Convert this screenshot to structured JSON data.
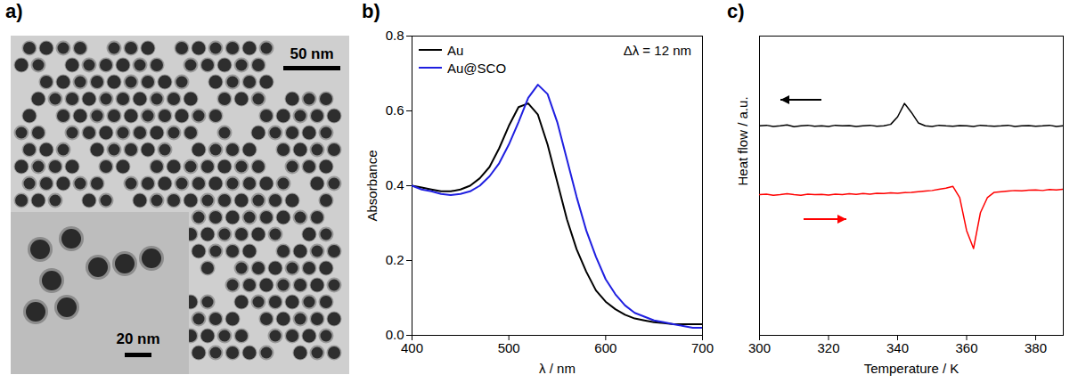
{
  "image_panel": {
    "panel_label": "a)",
    "scale_bars": [
      "50 nm",
      "20 nm"
    ]
  },
  "chart_data": [
    {
      "type": "line",
      "panel_label": "b)",
      "annotation": "Δλ = 12 nm",
      "x_label": "λ / nm",
      "y_label": "Absorbance",
      "x": [
        400,
        410,
        420,
        430,
        440,
        450,
        460,
        470,
        480,
        490,
        500,
        510,
        520,
        530,
        540,
        550,
        560,
        570,
        580,
        590,
        600,
        610,
        620,
        630,
        640,
        650,
        660,
        670,
        680,
        690,
        700
      ],
      "series": [
        {
          "name": "Au",
          "color": "#000000",
          "values": [
            0.4,
            0.395,
            0.39,
            0.385,
            0.385,
            0.39,
            0.4,
            0.42,
            0.45,
            0.5,
            0.56,
            0.61,
            0.62,
            0.59,
            0.51,
            0.41,
            0.31,
            0.23,
            0.17,
            0.12,
            0.09,
            0.07,
            0.055,
            0.045,
            0.04,
            0.035,
            0.033,
            0.03,
            0.03,
            0.03,
            0.03
          ]
        },
        {
          "name": "Au@SCO",
          "color": "#1f1fe0",
          "values": [
            0.4,
            0.39,
            0.385,
            0.378,
            0.375,
            0.378,
            0.385,
            0.4,
            0.425,
            0.46,
            0.51,
            0.57,
            0.635,
            0.67,
            0.645,
            0.57,
            0.47,
            0.37,
            0.28,
            0.21,
            0.15,
            0.11,
            0.08,
            0.06,
            0.05,
            0.04,
            0.035,
            0.03,
            0.025,
            0.02,
            0.02
          ]
        }
      ],
      "xlim": [
        400,
        700
      ],
      "xticks": [
        400,
        500,
        600,
        700
      ],
      "ylim": [
        0,
        0.8
      ],
      "yticks": [
        {
          "value": 0,
          "label": "0.0"
        },
        0.2,
        0.4,
        0.6,
        0.8
      ],
      "legend": "top-left",
      "grid": false
    },
    {
      "type": "line",
      "panel_label": "c)",
      "x_label": "Temperature / K",
      "y_label": "Heat flow / a.u.",
      "x": [
        300,
        302,
        304,
        306,
        308,
        310,
        312,
        314,
        316,
        318,
        320,
        322,
        324,
        326,
        328,
        330,
        332,
        334,
        336,
        338,
        340,
        342,
        344,
        346,
        348,
        350,
        352,
        354,
        356,
        358,
        360,
        362,
        364,
        366,
        368,
        370,
        372,
        374,
        376,
        378,
        380,
        382,
        384,
        386,
        388
      ],
      "series": [
        {
          "color": "#000000",
          "values": [
            7.0,
            7.02,
            6.98,
            7.0,
            7.03,
            6.97,
            7.0,
            7.02,
            6.99,
            7.0,
            6.98,
            7.02,
            7.0,
            7.01,
            6.98,
            7.0,
            7.02,
            6.99,
            7.0,
            7.05,
            7.3,
            7.75,
            7.45,
            7.1,
            7.0,
            6.98,
            7.02,
            7.0,
            6.99,
            7.01,
            7.0,
            6.98,
            7.02,
            7.0,
            6.99,
            7.0,
            7.02,
            6.98,
            7.0,
            7.01,
            6.99,
            7.0,
            7.02,
            6.98,
            7.0
          ]
        },
        {
          "color": "#ff0000",
          "values": [
            4.7,
            4.72,
            4.68,
            4.7,
            4.73,
            4.7,
            4.68,
            4.72,
            4.7,
            4.71,
            4.69,
            4.72,
            4.7,
            4.73,
            4.71,
            4.74,
            4.72,
            4.75,
            4.74,
            4.76,
            4.75,
            4.77,
            4.78,
            4.8,
            4.82,
            4.84,
            4.88,
            4.92,
            4.98,
            4.6,
            3.5,
            2.9,
            4.1,
            4.6,
            4.78,
            4.8,
            4.82,
            4.84,
            4.83,
            4.85,
            4.86,
            4.84,
            4.87,
            4.86,
            4.88
          ]
        }
      ],
      "xlim": [
        300,
        388
      ],
      "xticks": [
        300,
        320,
        340,
        360,
        380
      ],
      "ylim": [
        0,
        10
      ],
      "tick_labels": "x",
      "grid": false
    }
  ]
}
